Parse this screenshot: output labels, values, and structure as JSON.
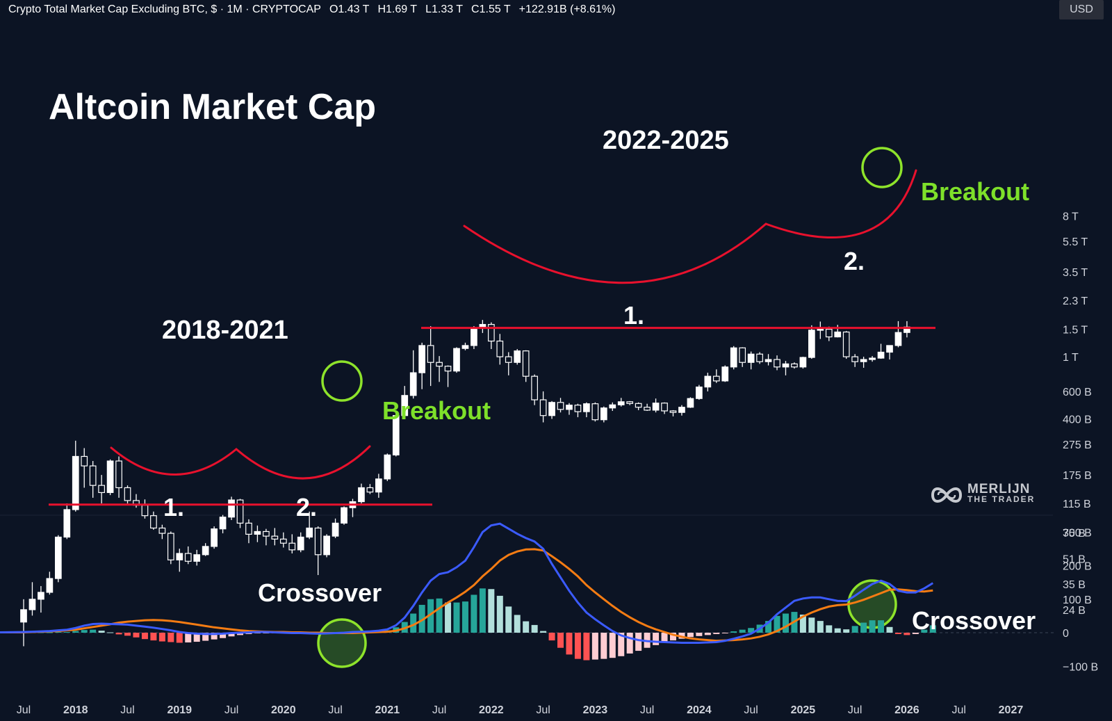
{
  "header": {
    "symbol": "Crypto Total Market Cap Excluding BTC, $ · 1M · CRYPTOCAP",
    "open": "O1.43 T",
    "high": "H1.69 T",
    "low": "L1.33 T",
    "close": "C1.55 T",
    "change": "+122.91B (+8.61%)"
  },
  "currency_button": "USD",
  "logo": {
    "line1": "MERLIJN",
    "line2": "THE TRADER",
    "icon": "double-infinity-logo-icon"
  },
  "colors": {
    "background": "#0c1424",
    "candle": "#ffffff",
    "resistance": "#e8112d",
    "highlight_circle": "#8ee32b",
    "breakout_text": "#7ee02a",
    "macd_line": "#3b5bff",
    "signal_line": "#f57c13",
    "hist_pos_strong": "#26a69a",
    "hist_pos_weak": "#b2dfdb",
    "hist_neg_strong": "#ff5252",
    "hist_neg_weak": "#ffcdd2"
  },
  "chart_data": [
    {
      "type": "candlestick",
      "title": "Altcoin Market Cap",
      "scale": "log",
      "y_ticks": [
        "8 T",
        "5.5 T",
        "3.5 T",
        "2.3 T",
        "1.5 T",
        "1 T",
        "600 B",
        "400 B",
        "275 B",
        "175 B",
        "115 B",
        "75 B",
        "51 B",
        "35 B",
        "24 B"
      ],
      "x_ticks": [
        "Jul",
        "2018",
        "Jul",
        "2019",
        "Jul",
        "2020",
        "Jul",
        "2021",
        "Jul",
        "2022",
        "Jul",
        "2023",
        "Jul",
        "2024",
        "Jul",
        "2025",
        "Jul",
        "2026",
        "Jul",
        "2027"
      ],
      "start": "2017-06",
      "ohlc_billions": [
        [
          20,
          28,
          14,
          24
        ],
        [
          24,
          36,
          22,
          28
        ],
        [
          28,
          34,
          23,
          31
        ],
        [
          31,
          42,
          30,
          38
        ],
        [
          38,
          72,
          36,
          70
        ],
        [
          70,
          115,
          68,
          105
        ],
        [
          105,
          290,
          102,
          230
        ],
        [
          230,
          260,
          145,
          200
        ],
        [
          200,
          215,
          125,
          150
        ],
        [
          150,
          175,
          115,
          135
        ],
        [
          135,
          220,
          130,
          215
        ],
        [
          215,
          230,
          125,
          145
        ],
        [
          145,
          150,
          115,
          120
        ],
        [
          120,
          132,
          108,
          112
        ],
        [
          112,
          122,
          92,
          96
        ],
        [
          96,
          102,
          78,
          80
        ],
        [
          80,
          84,
          68,
          74
        ],
        [
          74,
          76,
          47,
          50
        ],
        [
          50,
          59,
          42,
          55
        ],
        [
          55,
          61,
          47,
          49
        ],
        [
          49,
          58,
          46,
          54
        ],
        [
          54,
          64,
          53,
          61
        ],
        [
          61,
          82,
          59,
          79
        ],
        [
          79,
          97,
          74,
          94
        ],
        [
          94,
          127,
          90,
          121
        ],
        [
          121,
          123,
          80,
          86
        ],
        [
          86,
          91,
          64,
          73
        ],
        [
          73,
          83,
          65,
          76
        ],
        [
          76,
          79,
          62,
          71
        ],
        [
          71,
          80,
          62,
          68
        ],
        [
          68,
          75,
          60,
          64
        ],
        [
          64,
          73,
          55,
          58
        ],
        [
          58,
          75,
          56,
          70
        ],
        [
          70,
          102,
          68,
          80
        ],
        [
          80,
          82,
          40,
          54
        ],
        [
          54,
          73,
          52,
          71
        ],
        [
          71,
          92,
          69,
          86
        ],
        [
          86,
          110,
          84,
          108
        ],
        [
          108,
          123,
          94,
          118
        ],
        [
          118,
          154,
          115,
          145
        ],
        [
          145,
          153,
          132,
          136
        ],
        [
          136,
          178,
          125,
          165
        ],
        [
          165,
          240,
          160,
          235
        ],
        [
          235,
          445,
          230,
          420
        ],
        [
          420,
          650,
          400,
          565
        ],
        [
          565,
          1100,
          540,
          790
        ],
        [
          790,
          1230,
          620,
          1180
        ],
        [
          1180,
          1570,
          650,
          920
        ],
        [
          920,
          1010,
          690,
          870
        ],
        [
          870,
          880,
          640,
          810
        ],
        [
          810,
          1150,
          790,
          1130
        ],
        [
          1130,
          1230,
          1100,
          1180
        ],
        [
          1180,
          1570,
          1120,
          1530
        ],
        [
          1530,
          1720,
          1420,
          1610
        ],
        [
          1610,
          1660,
          1120,
          1260
        ],
        [
          1260,
          1400,
          890,
          1000
        ],
        [
          1000,
          1070,
          760,
          920
        ],
        [
          920,
          1120,
          890,
          1090
        ],
        [
          1090,
          1100,
          690,
          750
        ],
        [
          750,
          770,
          490,
          530
        ],
        [
          530,
          600,
          380,
          420
        ],
        [
          420,
          520,
          400,
          510
        ],
        [
          510,
          545,
          440,
          460
        ],
        [
          460,
          505,
          425,
          490
        ],
        [
          490,
          500,
          410,
          445
        ],
        [
          445,
          510,
          410,
          500
        ],
        [
          500,
          510,
          385,
          395
        ],
        [
          395,
          480,
          380,
          470
        ],
        [
          470,
          510,
          450,
          492
        ],
        [
          492,
          545,
          480,
          515
        ],
        [
          515,
          520,
          490,
          502
        ],
        [
          502,
          510,
          455,
          475
        ],
        [
          475,
          500,
          450,
          455
        ],
        [
          455,
          540,
          440,
          505
        ],
        [
          505,
          510,
          430,
          450
        ],
        [
          450,
          455,
          415,
          440
        ],
        [
          440,
          490,
          420,
          475
        ],
        [
          475,
          550,
          470,
          540
        ],
        [
          540,
          660,
          530,
          640
        ],
        [
          640,
          790,
          600,
          750
        ],
        [
          750,
          830,
          680,
          700
        ],
        [
          700,
          880,
          690,
          860
        ],
        [
          860,
          1170,
          830,
          1140
        ],
        [
          1140,
          1150,
          860,
          920
        ],
        [
          920,
          1080,
          830,
          1040
        ],
        [
          1040,
          1070,
          900,
          930
        ],
        [
          930,
          1040,
          880,
          960
        ],
        [
          960,
          1020,
          820,
          860
        ],
        [
          860,
          940,
          760,
          900
        ],
        [
          900,
          920,
          840,
          860
        ],
        [
          860,
          1000,
          840,
          990
        ],
        [
          990,
          1590,
          970,
          1480
        ],
        [
          1480,
          1680,
          1300,
          1500
        ],
        [
          1500,
          1560,
          1260,
          1340
        ],
        [
          1340,
          1600,
          1330,
          1440
        ],
        [
          1440,
          1460,
          970,
          1000
        ],
        [
          1000,
          1040,
          860,
          930
        ],
        [
          930,
          1000,
          850,
          960
        ],
        [
          960,
          1010,
          930,
          980
        ],
        [
          980,
          1210,
          970,
          1070
        ],
        [
          1070,
          1130,
          960,
          1180
        ],
        [
          1180,
          1690,
          1150,
          1430
        ],
        [
          1430,
          1690,
          1330,
          1550
        ]
      ],
      "annotations": {
        "left_period": "2018-2021",
        "right_period": "2022-2025",
        "breakout_left": "Breakout",
        "breakout_right": "Breakout",
        "left_bottom_1": "1.",
        "left_bottom_2": "2.",
        "right_bottom_1": "1.",
        "right_bottom_2": "2.",
        "left_resistance_billions": 113,
        "right_resistance_billions": 1530
      }
    },
    {
      "type": "macd",
      "y_ticks": [
        "300 B",
        "200 B",
        "100 B",
        "0",
        "−100 B"
      ],
      "ylim_billions": [
        -110,
        330
      ],
      "macd_billions": [
        2,
        3,
        4,
        5,
        7,
        9,
        14,
        21,
        26,
        27,
        26,
        25,
        24,
        21,
        18,
        15,
        11,
        7,
        2,
        -1,
        -3,
        -4,
        -4,
        -3,
        -1,
        0,
        1,
        2,
        2,
        1,
        0,
        -1,
        -1,
        -2,
        -3,
        -2,
        -1,
        0,
        2,
        3,
        4,
        6,
        10,
        22,
        45,
        80,
        120,
        155,
        175,
        180,
        195,
        215,
        255,
        300,
        320,
        325,
        310,
        295,
        282,
        272,
        250,
        205,
        165,
        125,
        90,
        60,
        40,
        22,
        5,
        -8,
        -16,
        -22,
        -25,
        -27,
        -28,
        -29,
        -30,
        -30,
        -30,
        -29,
        -28,
        -24,
        -18,
        -11,
        -3,
        12,
        30,
        55,
        75,
        95,
        102,
        105,
        105,
        100,
        95,
        94,
        110,
        128,
        145,
        155,
        145,
        125,
        120,
        120,
        132,
        148
      ],
      "signal_billions": [
        1,
        2,
        3,
        4,
        5,
        7,
        9,
        13,
        17,
        21,
        25,
        30,
        33,
        35,
        37,
        38,
        37,
        35,
        32,
        28,
        24,
        20,
        16,
        13,
        10,
        7,
        5,
        4,
        3,
        2,
        2,
        1,
        1,
        0,
        0,
        -1,
        -1,
        -1,
        -1,
        0,
        1,
        2,
        3,
        6,
        13,
        23,
        37,
        55,
        73,
        90,
        105,
        122,
        142,
        168,
        190,
        215,
        232,
        242,
        248,
        249,
        245,
        228,
        210,
        190,
        168,
        142,
        120,
        100,
        80,
        62,
        46,
        32,
        20,
        10,
        2,
        -6,
        -12,
        -17,
        -20,
        -22,
        -24,
        -23,
        -22,
        -20,
        -17,
        -12,
        -5,
        5,
        18,
        33,
        48,
        60,
        70,
        78,
        82,
        84,
        90,
        98,
        108,
        118,
        128,
        129,
        127,
        124,
        123,
        126
      ],
      "histogram_billions": [
        1,
        1,
        1,
        1,
        2,
        2,
        5,
        8,
        9,
        6,
        1,
        -5,
        -9,
        -14,
        -19,
        -23,
        -26,
        -28,
        -30,
        -29,
        -27,
        -24,
        -20,
        -16,
        -11,
        -7,
        -4,
        -2,
        -1,
        -1,
        -2,
        -2,
        -2,
        -2,
        -3,
        -1,
        0,
        1,
        3,
        3,
        3,
        4,
        7,
        16,
        32,
        57,
        83,
        100,
        102,
        90,
        90,
        93,
        113,
        132,
        130,
        110,
        78,
        53,
        34,
        23,
        5,
        -23,
        -45,
        -65,
        -78,
        -82,
        -80,
        -78,
        -75,
        -70,
        -62,
        -54,
        -45,
        -37,
        -30,
        -23,
        -18,
        -13,
        -10,
        -7,
        -4,
        -1,
        4,
        9,
        14,
        24,
        35,
        50,
        57,
        62,
        54,
        45,
        35,
        22,
        13,
        10,
        20,
        30,
        37,
        37,
        17,
        -4,
        -7,
        -4,
        9,
        22
      ],
      "annotations": {
        "left": "Crossover",
        "right": "Crossover"
      }
    }
  ]
}
